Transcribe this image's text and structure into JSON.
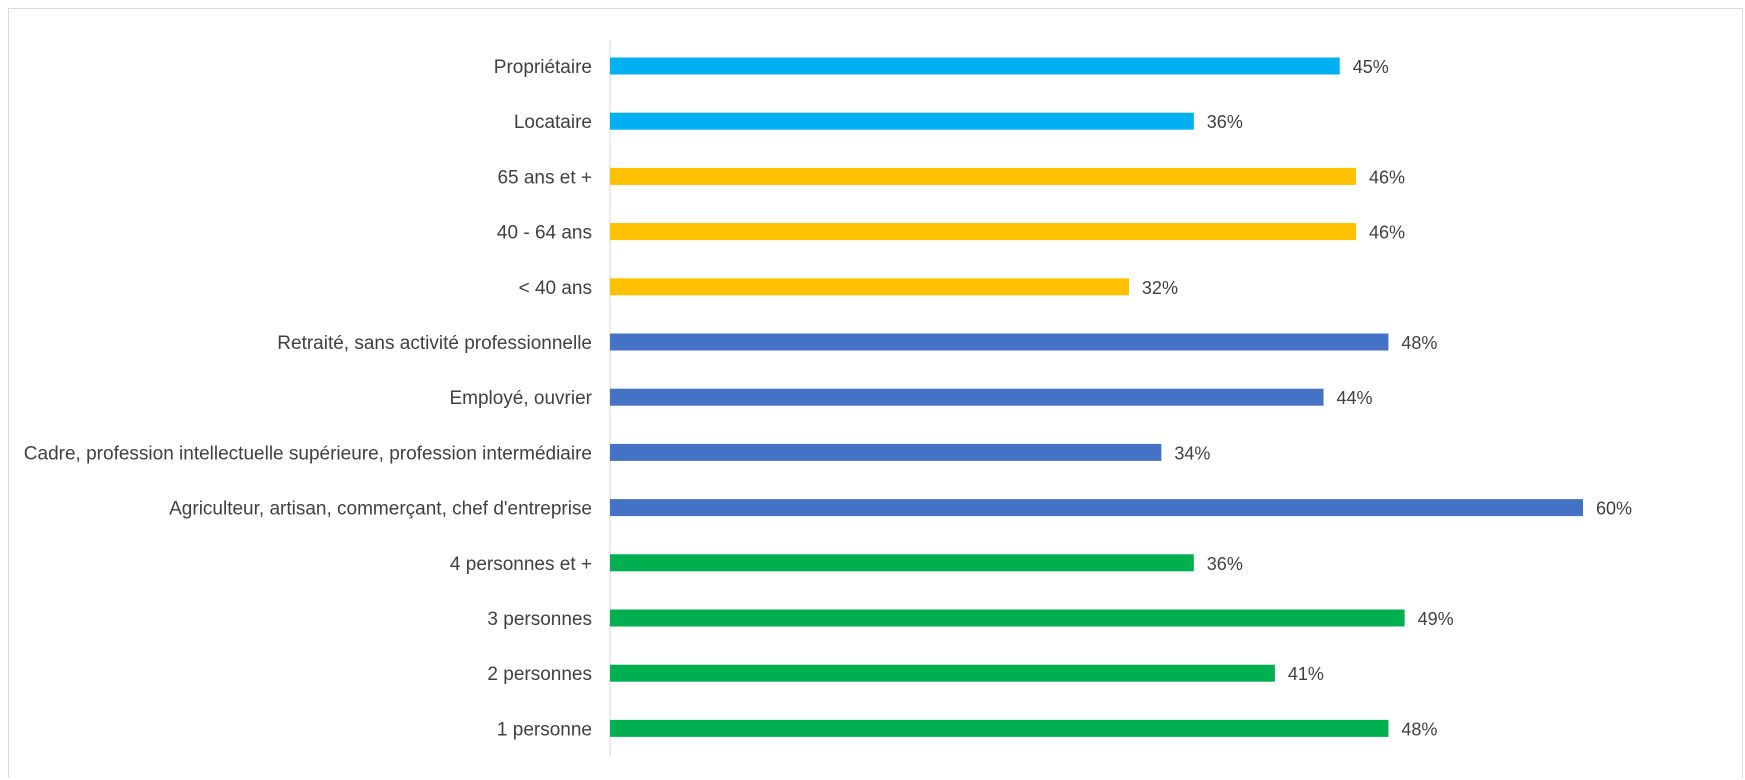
{
  "chart_data": {
    "type": "bar",
    "orientation": "horizontal",
    "categories": [
      "Propriétaire",
      "Locataire",
      "65 ans et +",
      "40 - 64 ans",
      "< 40 ans",
      "Retraité, sans activité professionnelle",
      "Employé, ouvrier",
      "Cadre, profession intellectuelle supérieure, profession intermédiaire",
      "Agriculteur, artisan, commerçant, chef d'entreprise",
      "4 personnes et +",
      "3 personnes",
      "2 personnes",
      "1 personne"
    ],
    "values": [
      45,
      36,
      46,
      46,
      32,
      48,
      44,
      34,
      60,
      36,
      49,
      41,
      48
    ],
    "value_labels": [
      "45%",
      "36%",
      "46%",
      "46%",
      "32%",
      "48%",
      "44%",
      "34%",
      "60%",
      "36%",
      "49%",
      "41%",
      "48%"
    ],
    "colors": [
      "#00B0F0",
      "#00B0F0",
      "#FFC000",
      "#FFC000",
      "#FFC000",
      "#4472C4",
      "#4472C4",
      "#4472C4",
      "#4472C4",
      "#00B050",
      "#00B050",
      "#00B050",
      "#00B050"
    ],
    "xlim": [
      0,
      60
    ],
    "title": "",
    "xlabel": "",
    "ylabel": "",
    "grid": false,
    "legend": "none"
  }
}
